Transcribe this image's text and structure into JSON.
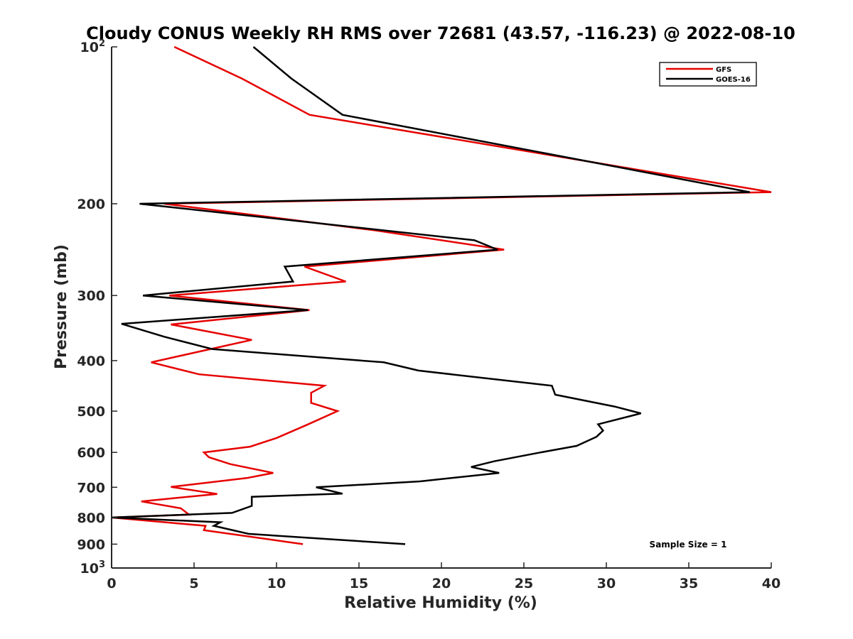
{
  "chart_data": {
    "type": "line",
    "orientation": "vertical-profile",
    "title": "Cloudy CONUS Weekly RH RMS over 72681 (43.57, -116.23) @ 2022-08-10",
    "xlabel": "Relative Humidity (%)",
    "ylabel": "Pressure (mb)",
    "xlim": [
      0,
      40
    ],
    "ylim": [
      100,
      1000
    ],
    "yscale": "log",
    "y_reversed": true,
    "x_ticks": [
      {
        "value": 0,
        "label": "0"
      },
      {
        "value": 5,
        "label": "5"
      },
      {
        "value": 10,
        "label": "10"
      },
      {
        "value": 15,
        "label": "15"
      },
      {
        "value": 20,
        "label": "20"
      },
      {
        "value": 25,
        "label": "25"
      },
      {
        "value": 30,
        "label": "30"
      },
      {
        "value": 35,
        "label": "35"
      },
      {
        "value": 40,
        "label": "40"
      }
    ],
    "y_ticks": [
      {
        "value": 100,
        "base": "10",
        "exp": "2"
      },
      {
        "value": 200,
        "label": "200"
      },
      {
        "value": 300,
        "label": "300"
      },
      {
        "value": 400,
        "label": "400"
      },
      {
        "value": 500,
        "label": "500"
      },
      {
        "value": 600,
        "label": "600"
      },
      {
        "value": 700,
        "label": "700"
      },
      {
        "value": 800,
        "label": "800"
      },
      {
        "value": 900,
        "label": "900"
      },
      {
        "value": 1000,
        "base": "10",
        "exp": "3"
      }
    ],
    "grid": false,
    "legend_position": "top-right",
    "series": [
      {
        "name": "GFS",
        "color": "#e60000",
        "points": [
          [
            3.8,
            100
          ],
          [
            7.9,
            115
          ],
          [
            12.0,
            135
          ],
          [
            40.0,
            190
          ],
          [
            3.2,
            200
          ],
          [
            16.0,
            225
          ],
          [
            23.8,
            245
          ],
          [
            11.7,
            264
          ],
          [
            14.2,
            282
          ],
          [
            3.5,
            300
          ],
          [
            12.0,
            320
          ],
          [
            3.6,
            341
          ],
          [
            8.5,
            365
          ],
          [
            6.0,
            380
          ],
          [
            2.4,
            403
          ],
          [
            5.3,
            425
          ],
          [
            12.9,
            447
          ],
          [
            12.1,
            461
          ],
          [
            12.1,
            482
          ],
          [
            13.7,
            500
          ],
          [
            11.8,
            532
          ],
          [
            10.0,
            563
          ],
          [
            8.4,
            585
          ],
          [
            5.6,
            600
          ],
          [
            5.9,
            613
          ],
          [
            7.2,
            632
          ],
          [
            9.8,
            657
          ],
          [
            8.2,
            672
          ],
          [
            3.6,
            699
          ],
          [
            6.4,
            721
          ],
          [
            1.8,
            745
          ],
          [
            4.2,
            768
          ],
          [
            4.7,
            790
          ],
          [
            0,
            800
          ],
          [
            5.7,
            830
          ],
          [
            5.6,
            846
          ],
          [
            11.6,
            900
          ]
        ]
      },
      {
        "name": "GOES-16",
        "color": "#000000",
        "points": [
          [
            8.6,
            100
          ],
          [
            10.9,
            115
          ],
          [
            14.0,
            135
          ],
          [
            38.7,
            190
          ],
          [
            1.7,
            200
          ],
          [
            22.0,
            235
          ],
          [
            23.4,
            245
          ],
          [
            10.5,
            264
          ],
          [
            11.0,
            282
          ],
          [
            1.9,
            300
          ],
          [
            11.9,
            320
          ],
          [
            0.6,
            340
          ],
          [
            3.2,
            360
          ],
          [
            6.1,
            380
          ],
          [
            16.5,
            403
          ],
          [
            18.6,
            418
          ],
          [
            26.7,
            447
          ],
          [
            26.9,
            465
          ],
          [
            30.5,
            490
          ],
          [
            32.1,
            505
          ],
          [
            29.5,
            530
          ],
          [
            29.8,
            545
          ],
          [
            29.4,
            560
          ],
          [
            28.2,
            583
          ],
          [
            25.9,
            601
          ],
          [
            23.2,
            624
          ],
          [
            21.8,
            640
          ],
          [
            23.5,
            657
          ],
          [
            18.7,
            682
          ],
          [
            12.4,
            700
          ],
          [
            14.0,
            720
          ],
          [
            8.5,
            730
          ],
          [
            8.5,
            760
          ],
          [
            7.3,
            784
          ],
          [
            0,
            800
          ],
          [
            6.6,
            817
          ],
          [
            6.2,
            830
          ],
          [
            8.3,
            860
          ],
          [
            17.8,
            900
          ]
        ]
      }
    ],
    "annotations": [
      "Sample Size = 1"
    ]
  }
}
